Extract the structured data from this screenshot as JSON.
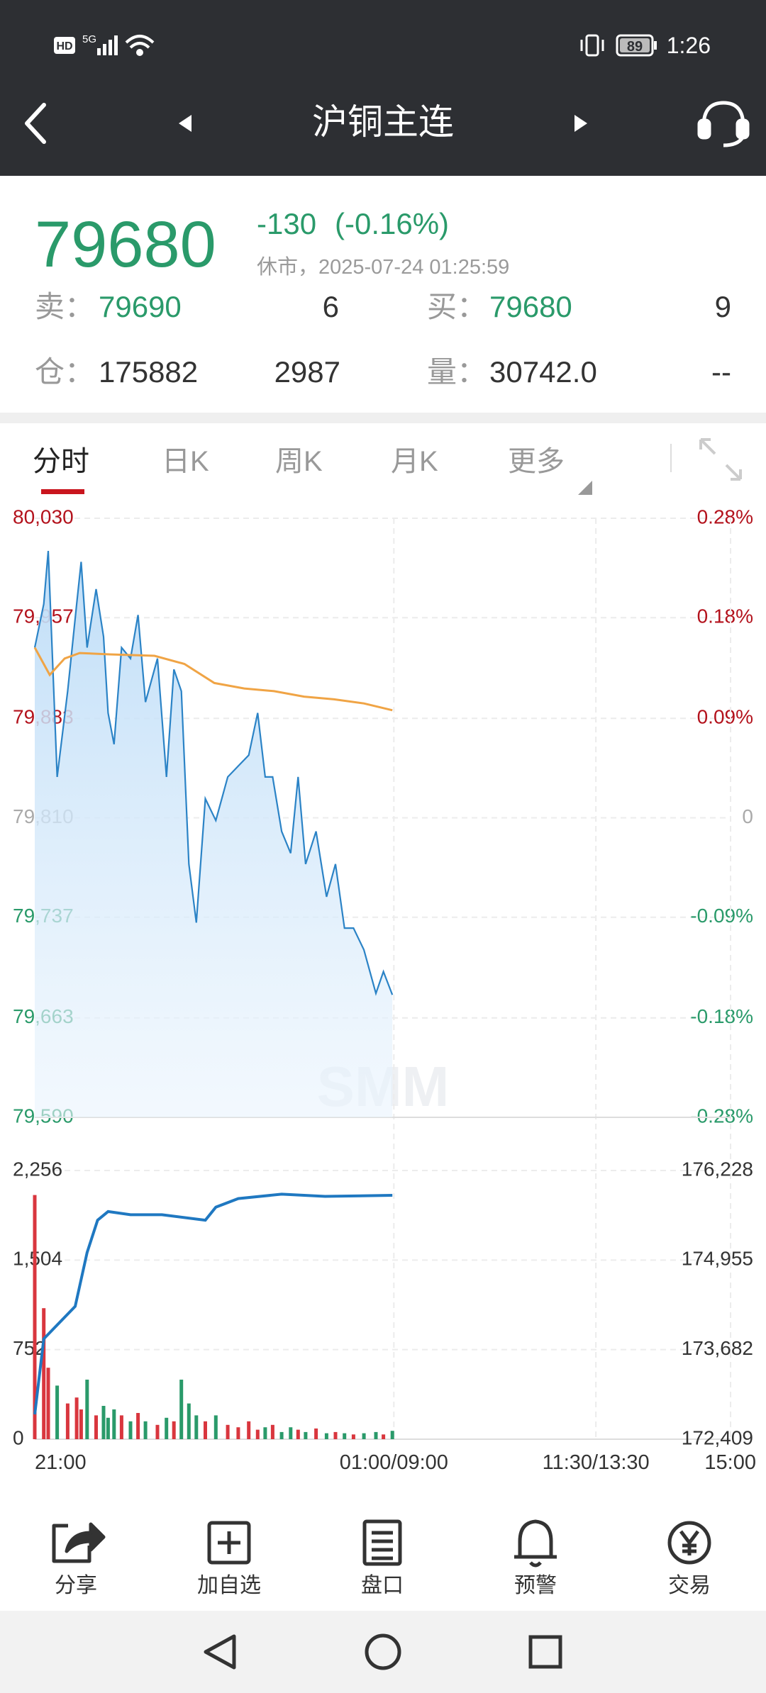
{
  "status_bar": {
    "network": "HD",
    "signal": "5G",
    "battery": "89",
    "time": "1:26"
  },
  "header": {
    "title": "沪铜主连"
  },
  "quote": {
    "price": "79680",
    "change": "-130",
    "change_pct": "(-0.16%)",
    "status": "休市，2025-07-24 01:25:59",
    "ask_label": "卖：",
    "ask": "79690",
    "ask_vol": "6",
    "bid_label": "买：",
    "bid": "79680",
    "bid_vol": "9",
    "oi_label": "仓：",
    "oi": "175882",
    "oi_change": "2987",
    "volume_label": "量：",
    "volume": "30742.0",
    "extra": "--"
  },
  "tabs": [
    "分时",
    "日K",
    "周K",
    "月K",
    "更多"
  ],
  "price_chart": {
    "type": "line",
    "watermark": "SMM",
    "grid": true,
    "xlim": [
      0,
      465
    ],
    "xticks": [
      {
        "value": 0,
        "label": "21:00"
      },
      {
        "value": 240,
        "label": "01:00/09:00"
      },
      {
        "value": 375,
        "label": "11:30/13:30"
      },
      {
        "value": 465,
        "label": "15:00"
      }
    ],
    "ylim": [
      79590,
      80030
    ],
    "yticks": [
      {
        "value": 80030,
        "label": "80,030"
      },
      {
        "value": 79957,
        "label": "79,957"
      },
      {
        "value": 79883,
        "label": "79,883"
      },
      {
        "value": 79810,
        "label": "79,810"
      },
      {
        "value": 79737,
        "label": "79,737"
      },
      {
        "value": 79663,
        "label": "79,663"
      },
      {
        "value": 79590,
        "label": "79,590"
      }
    ],
    "y2lim": [
      -0.2757,
      0.2757
    ],
    "y2ticks": [
      {
        "value": 0.2757,
        "label": "0.28%"
      },
      {
        "value": 0.1842,
        "label": "0.18%"
      },
      {
        "value": 0.0915,
        "label": "0.09%"
      },
      0,
      {
        "value": -0.0915,
        "label": "-0.09%"
      },
      {
        "value": -0.1842,
        "label": "-0.18%"
      },
      {
        "value": -0.2757,
        "label": "-0.28%"
      }
    ],
    "series": [
      {
        "color": "#2b83c6",
        "x": [
          0,
          6,
          9,
          15,
          22,
          28,
          31,
          35,
          41,
          46,
          49,
          53,
          58,
          64,
          69,
          74,
          82,
          88,
          93,
          98,
          103,
          108,
          114,
          121,
          129,
          136,
          143,
          149,
          154,
          159,
          165,
          171,
          176,
          181,
          188,
          195,
          201,
          207,
          213,
          220,
          228,
          233,
          239
        ],
        "values": [
          79935,
          79967,
          80006,
          79840,
          79903,
          79967,
          79998,
          79935,
          79978,
          79943,
          79887,
          79864,
          79935,
          79927,
          79959,
          79895,
          79927,
          79840,
          79919,
          79903,
          79776,
          79733,
          79824,
          79808,
          79840,
          79848,
          79856,
          79887,
          79840,
          79840,
          79800,
          79784,
          79840,
          79776,
          79800,
          79752,
          79776,
          79729,
          79729,
          79713,
          79681,
          79697,
          79680
        ]
      },
      {
        "color": "#f0a445",
        "x": [
          0,
          10,
          20,
          30,
          50,
          80,
          100,
          120,
          140,
          160,
          180,
          200,
          220,
          239
        ],
        "values": [
          79935,
          79915,
          79927,
          79931,
          79930,
          79929,
          79923,
          79909,
          79905,
          79903,
          79899,
          79897,
          79894,
          79889
        ]
      }
    ]
  },
  "volume_chart": {
    "type": "bar",
    "grid": true,
    "xlim": [
      0,
      465
    ],
    "ylim": [
      0,
      2256
    ],
    "yticks": [
      {
        "value": 2256,
        "label": "2,256"
      },
      {
        "value": 1504,
        "label": "1,504"
      },
      752,
      0
    ],
    "y2lim": [
      172409,
      176228
    ],
    "y2ticks": [
      {
        "value": 176228,
        "label": "176,228"
      },
      {
        "value": 174955,
        "label": "174,955"
      },
      {
        "value": 173682,
        "label": "173,682"
      },
      {
        "value": 172409,
        "label": "172,409"
      }
    ],
    "up_color": "#d9363e",
    "down_color": "#2a9a6a",
    "series": [
      {
        "type": "bar",
        "x": [
          0,
          6,
          9,
          15,
          22,
          28,
          31,
          35,
          41,
          46,
          49,
          53,
          58,
          64,
          69,
          74,
          82,
          88,
          93,
          98,
          103,
          108,
          114,
          121,
          129,
          136,
          143,
          149,
          154,
          159,
          165,
          171,
          176,
          181,
          188,
          195,
          201,
          207,
          213,
          220,
          228,
          233,
          239
        ],
        "values": [
          2050,
          1100,
          600,
          450,
          300,
          350,
          250,
          500,
          200,
          280,
          180,
          250,
          200,
          150,
          220,
          150,
          120,
          180,
          150,
          500,
          300,
          200,
          150,
          200,
          120,
          100,
          150,
          80,
          100,
          120,
          60,
          100,
          80,
          60,
          90,
          50,
          60,
          50,
          40,
          50,
          60,
          40,
          70
        ]
      },
      {
        "type": "line",
        "axis": "y2",
        "color": "#1f78c1",
        "x": [
          0,
          6,
          13,
          27,
          35,
          42,
          49,
          64,
          85,
          114,
          121,
          136,
          165,
          194,
          239
        ],
        "values": [
          172762,
          173835,
          173989,
          174296,
          175062,
          175522,
          175645,
          175599,
          175599,
          175522,
          175707,
          175829,
          175891,
          175860,
          175875
        ]
      }
    ]
  },
  "toolbar": [
    "分享",
    "加自选",
    "盘口",
    "预警",
    "交易"
  ]
}
